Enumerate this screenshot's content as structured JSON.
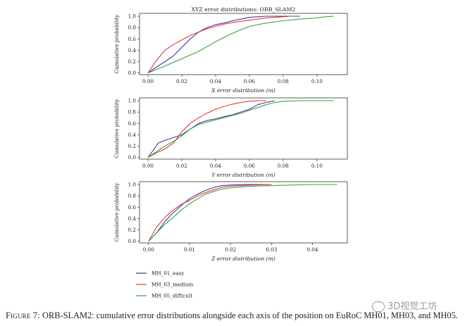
{
  "figure": {
    "caption_label": "Figure 7:",
    "caption_text": " ORB-SLAM2: cumulative error distributions alongside each axis of the position on EuRoC MH01, MH03, and MH05.",
    "watermark": "3D视觉工坊"
  },
  "chart_data": [
    {
      "type": "line",
      "title": "XYZ error distributions: ORB_SLAM2",
      "xlabel": "X error distribution (m)",
      "ylabel": "Cumulative probability",
      "xlim": [
        -0.005,
        0.118
      ],
      "ylim": [
        -0.03,
        1.05
      ],
      "xticks": [
        0.0,
        0.02,
        0.04,
        0.06,
        0.08,
        0.1
      ],
      "xtick_labels": [
        "0.00",
        "0.02",
        "0.04",
        "0.06",
        "0.08",
        "0.10"
      ],
      "yticks": [
        0.0,
        0.2,
        0.4,
        0.6,
        0.8,
        1.0
      ],
      "ytick_labels": [
        "0.0",
        "0.2",
        "0.4",
        "0.6",
        "0.8",
        "1.0"
      ],
      "series": [
        {
          "name": "MH_01_easy",
          "color": "#3a3aa6",
          "x": [
            0,
            0.005,
            0.01,
            0.015,
            0.02,
            0.025,
            0.03,
            0.035,
            0.04,
            0.045,
            0.05,
            0.055,
            0.06,
            0.065,
            0.07,
            0.09
          ],
          "y": [
            0,
            0.1,
            0.2,
            0.3,
            0.45,
            0.6,
            0.72,
            0.8,
            0.85,
            0.88,
            0.92,
            0.95,
            0.98,
            0.99,
            1.0,
            1.0
          ]
        },
        {
          "name": "MH_03_medium",
          "color": "#e23b3b",
          "x": [
            0,
            0.005,
            0.01,
            0.015,
            0.02,
            0.025,
            0.03,
            0.035,
            0.04,
            0.045,
            0.05,
            0.055,
            0.06,
            0.065,
            0.07,
            0.075,
            0.08,
            0.085
          ],
          "y": [
            0,
            0.22,
            0.4,
            0.5,
            0.58,
            0.66,
            0.72,
            0.78,
            0.82,
            0.86,
            0.89,
            0.91,
            0.93,
            0.95,
            0.97,
            0.98,
            0.99,
            1.0
          ]
        },
        {
          "name": "MH_05_difficult",
          "color": "#3aa33a",
          "x": [
            0,
            0.01,
            0.02,
            0.03,
            0.04,
            0.05,
            0.06,
            0.07,
            0.08,
            0.09,
            0.1,
            0.105,
            0.11
          ],
          "y": [
            0,
            0.12,
            0.25,
            0.38,
            0.55,
            0.7,
            0.82,
            0.88,
            0.92,
            0.95,
            0.97,
            0.99,
            1.0
          ]
        }
      ]
    },
    {
      "type": "line",
      "title": "",
      "xlabel": "Y error distribution (m)",
      "ylabel": "Cumulative probability",
      "xlim": [
        -0.005,
        0.118
      ],
      "ylim": [
        -0.03,
        1.05
      ],
      "xticks": [
        0.0,
        0.02,
        0.04,
        0.06,
        0.08,
        0.1
      ],
      "xtick_labels": [
        "0.00",
        "0.02",
        "0.04",
        "0.06",
        "0.08",
        "0.10"
      ],
      "yticks": [
        0.0,
        0.2,
        0.4,
        0.6,
        0.8,
        1.0
      ],
      "ytick_labels": [
        "0.0",
        "0.2",
        "0.4",
        "0.6",
        "0.8",
        "1.0"
      ],
      "series": [
        {
          "name": "MH_01_easy",
          "color": "#3a3aa6",
          "x": [
            0,
            0.003,
            0.006,
            0.01,
            0.015,
            0.02,
            0.025,
            0.03,
            0.035,
            0.04,
            0.045,
            0.05,
            0.055,
            0.06,
            0.065,
            0.07,
            0.075
          ],
          "y": [
            0,
            0.12,
            0.25,
            0.3,
            0.35,
            0.4,
            0.5,
            0.6,
            0.65,
            0.68,
            0.72,
            0.75,
            0.8,
            0.85,
            0.93,
            0.97,
            1.0
          ]
        },
        {
          "name": "MH_03_medium",
          "color": "#e23b3b",
          "x": [
            0,
            0.005,
            0.01,
            0.015,
            0.02,
            0.025,
            0.03,
            0.035,
            0.04,
            0.045,
            0.05,
            0.055,
            0.06,
            0.065,
            0.07
          ],
          "y": [
            0,
            0.08,
            0.15,
            0.25,
            0.45,
            0.6,
            0.7,
            0.78,
            0.85,
            0.9,
            0.94,
            0.97,
            0.99,
            1.0,
            1.0
          ]
        },
        {
          "name": "MH_05_difficult",
          "color": "#3aa33a",
          "x": [
            0,
            0.005,
            0.01,
            0.015,
            0.02,
            0.025,
            0.03,
            0.035,
            0.04,
            0.045,
            0.05,
            0.055,
            0.06,
            0.065,
            0.07,
            0.075,
            0.08,
            0.09,
            0.11
          ],
          "y": [
            0,
            0.1,
            0.2,
            0.28,
            0.38,
            0.5,
            0.58,
            0.62,
            0.66,
            0.7,
            0.74,
            0.78,
            0.83,
            0.88,
            0.93,
            0.97,
            0.99,
            1.0,
            1.0
          ]
        }
      ]
    },
    {
      "type": "line",
      "title": "",
      "xlabel": "Z error distribution (m)",
      "ylabel": "Cumulative probability",
      "xlim": [
        -0.0022,
        0.0485
      ],
      "ylim": [
        -0.03,
        1.05
      ],
      "xticks": [
        0.0,
        0.01,
        0.02,
        0.03,
        0.04
      ],
      "xtick_labels": [
        "0.00",
        "0.01",
        "0.02",
        "0.03",
        "0.04"
      ],
      "yticks": [
        0.0,
        0.2,
        0.4,
        0.6,
        0.8,
        1.0
      ],
      "ytick_labels": [
        "0.0",
        "0.2",
        "0.4",
        "0.6",
        "0.8",
        "1.0"
      ],
      "series": [
        {
          "name": "MH_01_easy",
          "color": "#3a3aa6",
          "x": [
            0,
            0.002,
            0.004,
            0.006,
            0.008,
            0.01,
            0.012,
            0.014,
            0.016,
            0.018,
            0.02,
            0.024,
            0.03
          ],
          "y": [
            0,
            0.15,
            0.35,
            0.5,
            0.63,
            0.75,
            0.83,
            0.9,
            0.95,
            0.98,
            0.99,
            1.0,
            1.0
          ]
        },
        {
          "name": "MH_03_medium",
          "color": "#e23b3b",
          "x": [
            0,
            0.002,
            0.004,
            0.006,
            0.008,
            0.01,
            0.012,
            0.014,
            0.016,
            0.018,
            0.02,
            0.025,
            0.03
          ],
          "y": [
            0,
            0.25,
            0.42,
            0.55,
            0.65,
            0.72,
            0.8,
            0.86,
            0.91,
            0.95,
            0.97,
            0.99,
            1.0
          ]
        },
        {
          "name": "MH_05_difficult",
          "color": "#3aa33a",
          "x": [
            0,
            0.002,
            0.004,
            0.006,
            0.008,
            0.01,
            0.012,
            0.014,
            0.016,
            0.018,
            0.02,
            0.025,
            0.03,
            0.035,
            0.04,
            0.046
          ],
          "y": [
            0,
            0.15,
            0.3,
            0.42,
            0.55,
            0.66,
            0.75,
            0.83,
            0.88,
            0.92,
            0.94,
            0.97,
            0.98,
            0.99,
            1.0,
            1.0
          ]
        }
      ]
    }
  ],
  "legend": {
    "placement": "bottom-left",
    "items": [
      {
        "label": "MH_01_easy",
        "color": "#3a3aa6"
      },
      {
        "label": "MH_03_medium",
        "color": "#e23b3b"
      },
      {
        "label": "MH_05_difficult",
        "color": "#3aa33a"
      }
    ]
  }
}
